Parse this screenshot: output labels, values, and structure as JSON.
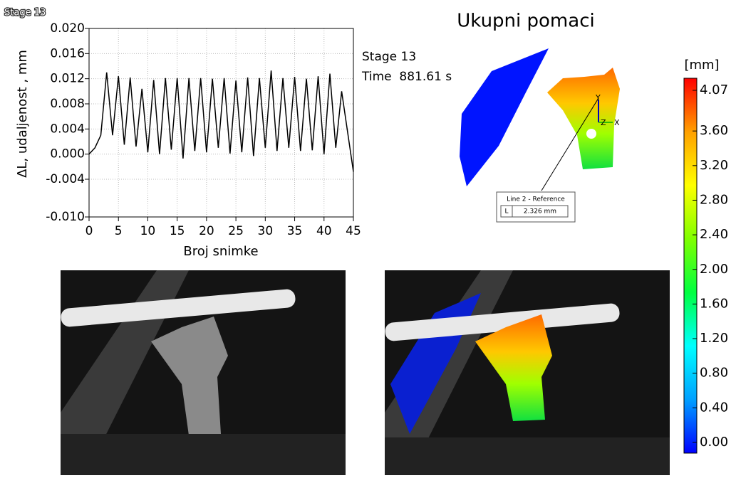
{
  "corner_label": "Stage 13",
  "info": {
    "stage": "Stage 13",
    "time": "Time  881.61 s"
  },
  "view": {
    "title": "Ukupni pomaci",
    "axes": [
      "Y",
      "Z",
      "X"
    ],
    "measure": {
      "title": "Line 2 - Reference",
      "key": "L",
      "value": "2.326 mm"
    }
  },
  "colorbar": {
    "unit": "[mm]",
    "lim": [
      0,
      4.07
    ],
    "colors": [
      "#0000ff",
      "#00a0ff",
      "#00ffff",
      "#00ff40",
      "#80ff00",
      "#ffff00",
      "#ffa000",
      "#ff0000"
    ],
    "ticks": [
      {
        "value": 4.07,
        "label": "4.07"
      },
      {
        "value": 3.6,
        "label": "3.60"
      },
      {
        "value": 3.2,
        "label": "3.20"
      },
      {
        "value": 2.8,
        "label": "2.80"
      },
      {
        "value": 2.4,
        "label": "2.40"
      },
      {
        "value": 2,
        "label": "2.00"
      },
      {
        "value": 1.6,
        "label": "1.60"
      },
      {
        "value": 1.2,
        "label": "1.20"
      },
      {
        "value": 0.8,
        "label": "0.80"
      },
      {
        "value": 0.4,
        "label": "0.40"
      },
      {
        "value": 0,
        "label": "0.00"
      }
    ]
  },
  "chart_data": {
    "type": "line",
    "xlabel": "Broj snimke",
    "ylabel": "ΔL, udaljenost , mm",
    "color": "#000000",
    "grid": true,
    "x": [
      0,
      1,
      2,
      3,
      4,
      5,
      6,
      7,
      8,
      9,
      10,
      11,
      12,
      13,
      14,
      15,
      16,
      17,
      18,
      19,
      20,
      21,
      22,
      23,
      24,
      25,
      26,
      27,
      28,
      29,
      30,
      31,
      32,
      33,
      34,
      35,
      36,
      37,
      38,
      39,
      40,
      41,
      42,
      43,
      44,
      45
    ],
    "values": [
      0.0,
      0.001,
      0.003,
      0.013,
      0.003,
      0.0124,
      0.0015,
      0.0122,
      0.0012,
      0.0104,
      0.0003,
      0.0118,
      0.0,
      0.0121,
      0.0007,
      0.0121,
      -0.0007,
      0.0121,
      0.0005,
      0.0121,
      0.0003,
      0.012,
      0.001,
      0.0121,
      0.0001,
      0.0117,
      0.0003,
      0.0122,
      -0.0003,
      0.0121,
      0.001,
      0.0133,
      0.0005,
      0.0121,
      0.001,
      0.0123,
      0.0005,
      0.012,
      0.0006,
      0.0124,
      0.0,
      0.0128,
      0.001,
      0.01,
      0.0036,
      -0.0028
    ],
    "xlim": [
      0,
      45
    ],
    "xticks": [
      0,
      5,
      10,
      15,
      20,
      25,
      30,
      35,
      40,
      45
    ],
    "ylim": [
      -0.01,
      0.02
    ],
    "yticks": [
      {
        "value": -0.01,
        "label": "-0.010"
      },
      -0.004,
      {
        "value": 0,
        "label": "0.000"
      },
      0.004,
      0.008,
      0.012,
      0.016,
      {
        "value": 0.02,
        "label": "0.020"
      }
    ]
  }
}
